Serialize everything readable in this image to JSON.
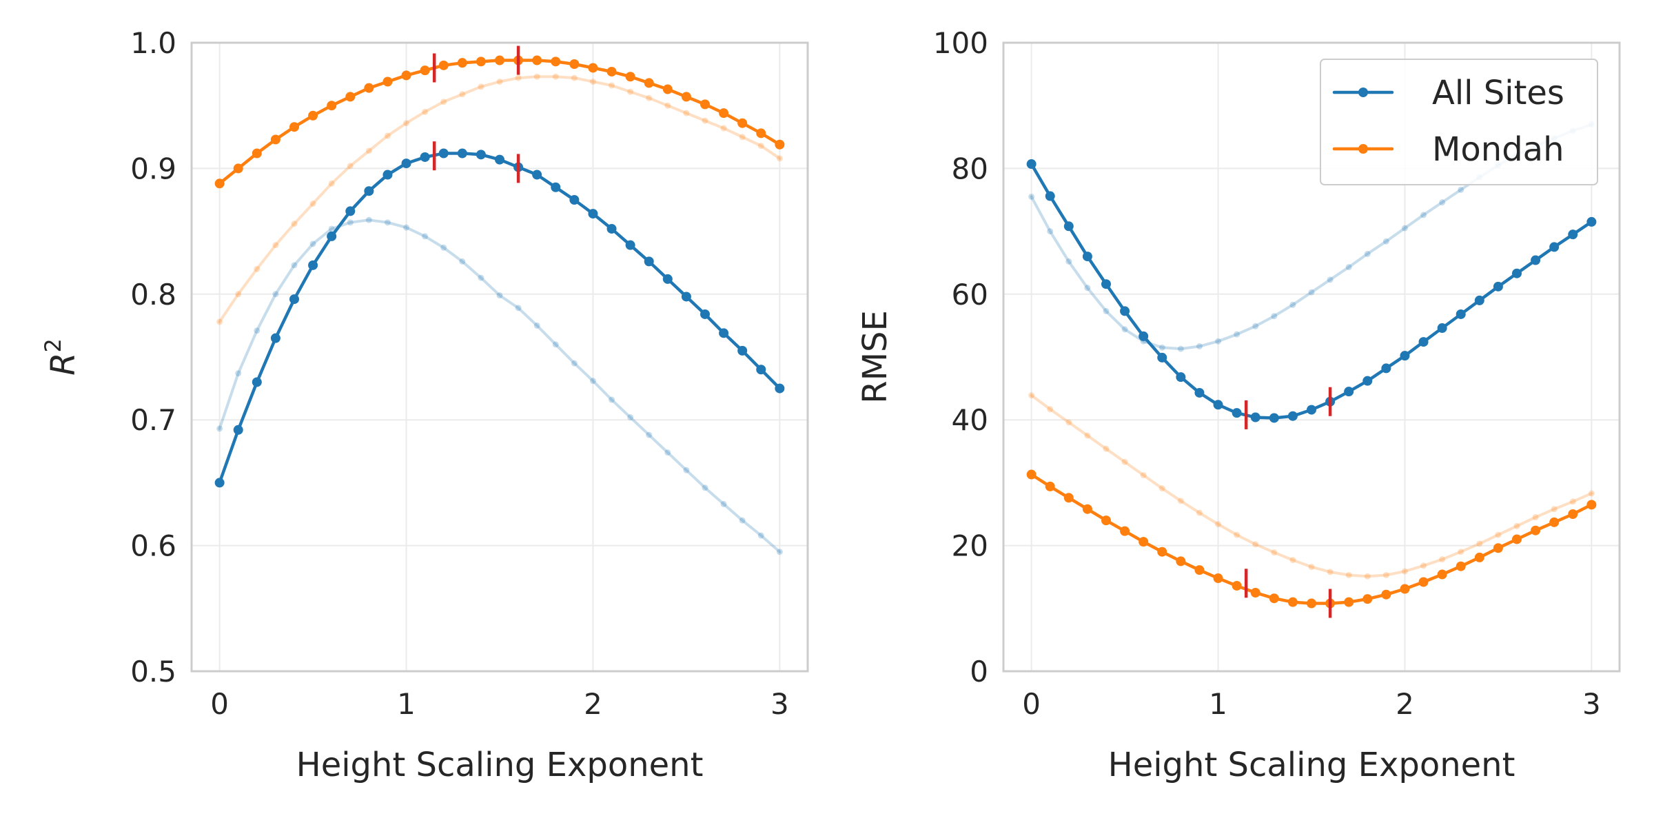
{
  "figure": {
    "colors": {
      "all_sites": "#1f77b4",
      "mondah": "#ff7f0e",
      "marker": "#d62728",
      "grid": "#ebebeb",
      "spine": "#cccccc"
    }
  },
  "chart_data": [
    {
      "type": "line",
      "title": "",
      "xlabel": "Height Scaling Exponent",
      "ylabel": "R²",
      "ylabel_base": "R",
      "ylabel_sup": "2",
      "xlim": [
        -0.15,
        3.15
      ],
      "ylim": [
        0.5,
        1.0
      ],
      "xticks": [
        0,
        1,
        2,
        3
      ],
      "xtick_labels": [
        "0",
        "1",
        "2",
        "3"
      ],
      "yticks": [
        0.5,
        0.6,
        0.7,
        0.8,
        0.9,
        1.0
      ],
      "ytick_labels": [
        "0.5",
        "0.6",
        "0.7",
        "0.8",
        "0.9",
        "1.0"
      ],
      "grid": true,
      "x": [
        0,
        0.1,
        0.2,
        0.3,
        0.4,
        0.5,
        0.6,
        0.7,
        0.8,
        0.9,
        1.0,
        1.1,
        1.2,
        1.3,
        1.4,
        1.5,
        1.6,
        1.7,
        1.8,
        1.9,
        2.0,
        2.1,
        2.2,
        2.3,
        2.4,
        2.5,
        2.6,
        2.7,
        2.8,
        2.9,
        3.0
      ],
      "series": [
        {
          "name": "All Sites",
          "style": "faded",
          "color_key": "all_sites",
          "values": [
            0.693,
            0.737,
            0.771,
            0.8,
            0.823,
            0.84,
            0.852,
            0.857,
            0.859,
            0.857,
            0.853,
            0.846,
            0.837,
            0.826,
            0.813,
            0.799,
            0.789,
            0.775,
            0.76,
            0.745,
            0.731,
            0.716,
            0.702,
            0.688,
            0.674,
            0.66,
            0.646,
            0.633,
            0.62,
            0.608,
            0.595
          ]
        },
        {
          "name": "All Sites",
          "style": "main",
          "color_key": "all_sites",
          "values": [
            0.65,
            0.692,
            0.73,
            0.765,
            0.796,
            0.823,
            0.846,
            0.866,
            0.882,
            0.895,
            0.904,
            0.909,
            0.912,
            0.912,
            0.911,
            0.907,
            0.901,
            0.895,
            0.885,
            0.875,
            0.864,
            0.852,
            0.839,
            0.826,
            0.812,
            0.798,
            0.784,
            0.769,
            0.755,
            0.74,
            0.725
          ]
        },
        {
          "name": "Mondah",
          "style": "faded",
          "color_key": "mondah",
          "values": [
            0.778,
            0.8,
            0.82,
            0.839,
            0.856,
            0.872,
            0.888,
            0.902,
            0.914,
            0.926,
            0.936,
            0.945,
            0.953,
            0.959,
            0.965,
            0.969,
            0.972,
            0.973,
            0.973,
            0.972,
            0.969,
            0.966,
            0.961,
            0.956,
            0.95,
            0.944,
            0.938,
            0.932,
            0.925,
            0.918,
            0.908
          ]
        },
        {
          "name": "Mondah",
          "style": "main",
          "color_key": "mondah",
          "values": [
            0.888,
            0.9,
            0.912,
            0.923,
            0.933,
            0.942,
            0.95,
            0.957,
            0.964,
            0.969,
            0.974,
            0.978,
            0.982,
            0.984,
            0.985,
            0.986,
            0.986,
            0.986,
            0.985,
            0.983,
            0.98,
            0.977,
            0.973,
            0.968,
            0.963,
            0.957,
            0.951,
            0.944,
            0.936,
            0.928,
            0.919
          ]
        }
      ],
      "markers": [
        {
          "x": 1.15,
          "y": 0.98
        },
        {
          "x": 1.6,
          "y": 0.986
        },
        {
          "x": 1.15,
          "y": 0.91
        },
        {
          "x": 1.6,
          "y": 0.9
        }
      ]
    },
    {
      "type": "line",
      "title": "",
      "xlabel": "Height Scaling Exponent",
      "ylabel": "RMSE",
      "xlim": [
        -0.15,
        3.15
      ],
      "ylim": [
        0,
        100
      ],
      "xticks": [
        0,
        1,
        2,
        3
      ],
      "xtick_labels": [
        "0",
        "1",
        "2",
        "3"
      ],
      "yticks": [
        0,
        20,
        40,
        60,
        80,
        100
      ],
      "ytick_labels": [
        "0",
        "20",
        "40",
        "60",
        "80",
        "100"
      ],
      "grid": true,
      "legend": {
        "placement": "top-right",
        "entries": [
          "All Sites",
          "Mondah"
        ]
      },
      "x": [
        0,
        0.1,
        0.2,
        0.3,
        0.4,
        0.5,
        0.6,
        0.7,
        0.8,
        0.9,
        1.0,
        1.1,
        1.2,
        1.3,
        1.4,
        1.5,
        1.6,
        1.7,
        1.8,
        1.9,
        2.0,
        2.1,
        2.2,
        2.3,
        2.4,
        2.5,
        2.6,
        2.7,
        2.8,
        2.9,
        3.0
      ],
      "series": [
        {
          "name": "All Sites",
          "style": "faded",
          "color_key": "all_sites",
          "values": [
            75.5,
            70.0,
            65.2,
            61.0,
            57.3,
            54.4,
            52.5,
            51.5,
            51.3,
            51.7,
            52.5,
            53.6,
            54.9,
            56.5,
            58.3,
            60.3,
            62.3,
            64.3,
            66.4,
            68.4,
            70.5,
            72.6,
            74.6,
            76.6,
            78.6,
            80.5,
            82.2,
            83.5,
            84.8,
            86.0,
            87.0
          ]
        },
        {
          "name": "All Sites",
          "style": "main",
          "color_key": "all_sites",
          "values": [
            80.7,
            75.6,
            70.8,
            66.0,
            61.6,
            57.3,
            53.3,
            49.9,
            46.8,
            44.3,
            42.4,
            41.1,
            40.4,
            40.3,
            40.6,
            41.6,
            42.9,
            44.5,
            46.2,
            48.2,
            50.2,
            52.4,
            54.6,
            56.8,
            59.0,
            61.2,
            63.3,
            65.4,
            67.5,
            69.5,
            71.5
          ]
        },
        {
          "name": "Mondah",
          "style": "faded",
          "color_key": "mondah",
          "values": [
            43.9,
            41.7,
            39.6,
            37.5,
            35.4,
            33.3,
            31.2,
            29.1,
            27.1,
            25.2,
            23.4,
            21.7,
            20.2,
            18.9,
            17.7,
            16.6,
            15.8,
            15.3,
            15.1,
            15.3,
            15.9,
            16.8,
            17.8,
            19.0,
            20.3,
            21.7,
            23.1,
            24.5,
            25.8,
            27.0,
            28.3
          ]
        },
        {
          "name": "Mondah",
          "style": "main",
          "color_key": "mondah",
          "values": [
            31.3,
            29.4,
            27.6,
            25.8,
            24.0,
            22.3,
            20.6,
            19.0,
            17.5,
            16.1,
            14.8,
            13.6,
            12.5,
            11.6,
            11.0,
            10.8,
            10.8,
            11.0,
            11.5,
            12.2,
            13.1,
            14.2,
            15.4,
            16.7,
            18.1,
            19.6,
            21.0,
            22.4,
            23.7,
            25.0,
            26.5
          ]
        }
      ],
      "markers": [
        {
          "x": 1.15,
          "y": 40.8
        },
        {
          "x": 1.6,
          "y": 42.9
        },
        {
          "x": 1.15,
          "y": 14.0
        },
        {
          "x": 1.6,
          "y": 10.8
        }
      ]
    }
  ]
}
